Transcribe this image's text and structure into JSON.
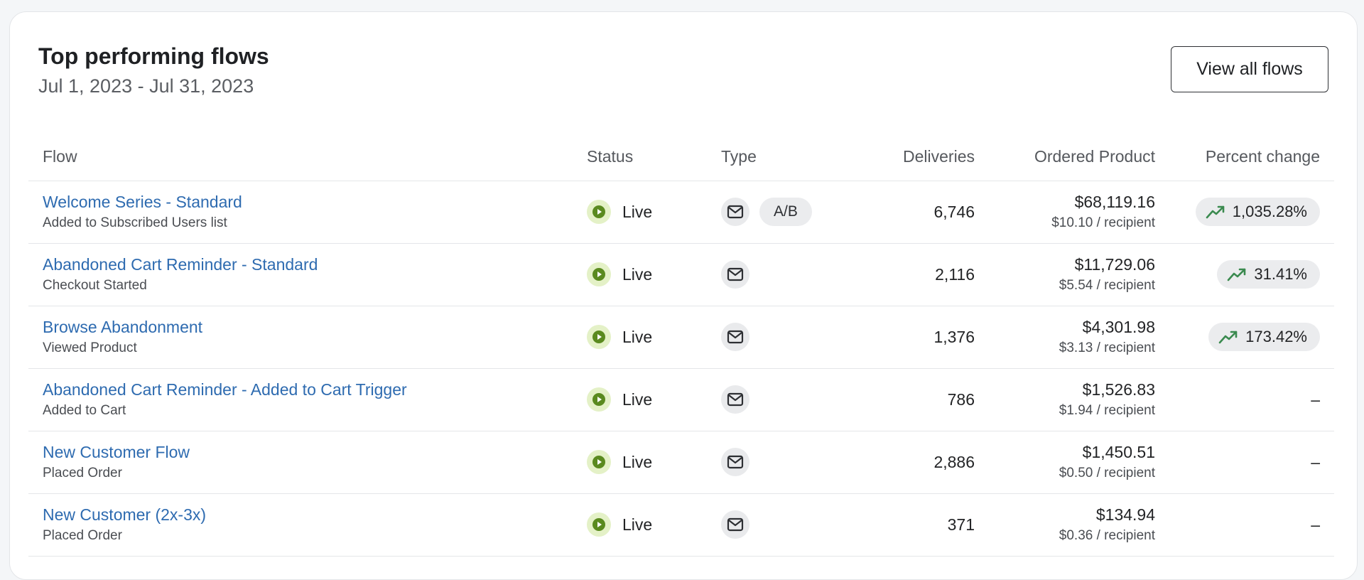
{
  "header": {
    "title": "Top performing flows",
    "date_range": "Jul 1, 2023 - Jul 31, 2023",
    "view_all_label": "View all flows"
  },
  "columns": {
    "flow": "Flow",
    "status": "Status",
    "type": "Type",
    "deliveries": "Deliveries",
    "ordered_product": "Ordered Product",
    "percent_change": "Percent change"
  },
  "rows": [
    {
      "name": "Welcome Series - Standard",
      "trigger": "Added to Subscribed Users list",
      "status": "Live",
      "ab": "A/B",
      "deliveries": "6,746",
      "ordered": "$68,119.16",
      "per_recipient": "$10.10 / recipient",
      "percent_change": "1,035.28%"
    },
    {
      "name": "Abandoned Cart Reminder - Standard",
      "trigger": "Checkout Started",
      "status": "Live",
      "ab": null,
      "deliveries": "2,116",
      "ordered": "$11,729.06",
      "per_recipient": "$5.54 / recipient",
      "percent_change": "31.41%"
    },
    {
      "name": "Browse Abandonment",
      "trigger": "Viewed Product",
      "status": "Live",
      "ab": null,
      "deliveries": "1,376",
      "ordered": "$4,301.98",
      "per_recipient": "$3.13 / recipient",
      "percent_change": "173.42%"
    },
    {
      "name": "Abandoned Cart Reminder - Added to Cart Trigger",
      "trigger": "Added to Cart",
      "status": "Live",
      "ab": null,
      "deliveries": "786",
      "ordered": "$1,526.83",
      "per_recipient": "$1.94 / recipient",
      "percent_change": "–"
    },
    {
      "name": "New Customer Flow",
      "trigger": "Placed Order",
      "status": "Live",
      "ab": null,
      "deliveries": "2,886",
      "ordered": "$1,450.51",
      "per_recipient": "$0.50 / recipient",
      "percent_change": "–"
    },
    {
      "name": "New Customer (2x-3x)",
      "trigger": "Placed Order",
      "status": "Live",
      "ab": null,
      "deliveries": "371",
      "ordered": "$134.94",
      "per_recipient": "$0.36 / recipient",
      "percent_change": "–"
    }
  ],
  "colors": {
    "link": "#2e6bb0",
    "live_green": "#5a8a1f",
    "live_bg": "#e4f1c7",
    "trend_green": "#3a8a4f"
  },
  "icons": {
    "status": "play-circle-icon",
    "type": "envelope-icon",
    "trend": "trending-up-icon"
  }
}
